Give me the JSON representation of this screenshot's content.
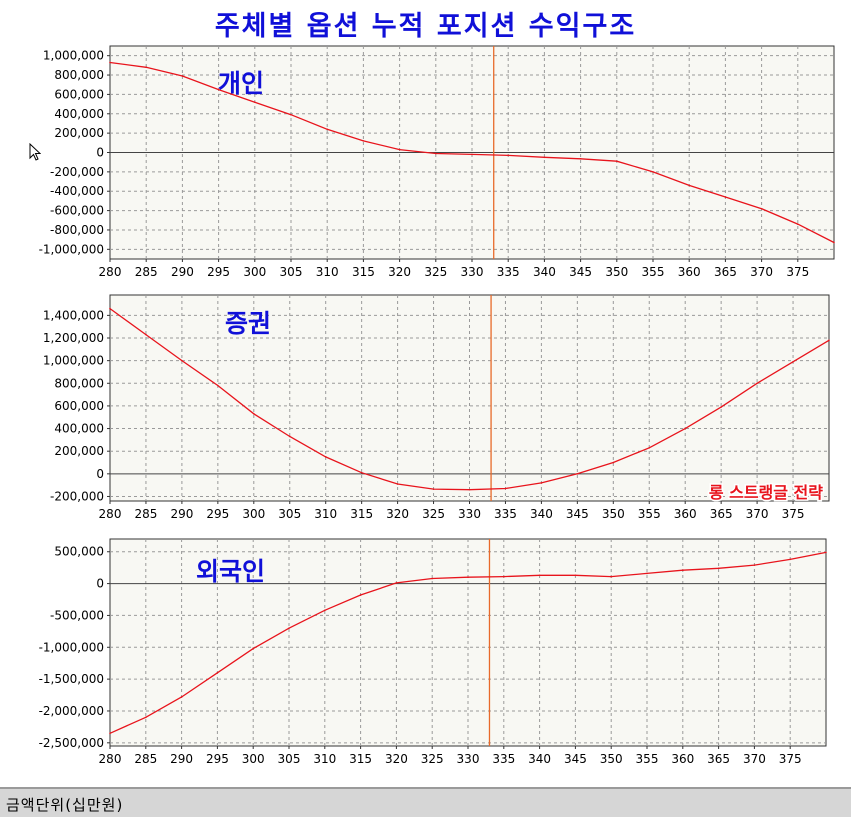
{
  "title": "주체별 옵션 누적 포지션 수익구조",
  "footer_label": "금액단위(십만원)",
  "colors": {
    "title": "#1010d8",
    "line": "#e8141c",
    "cursor_line": "#e86a2a",
    "plot_bg": "#f8f8f3",
    "panel_label": "#1010d8",
    "annotation": "#e8141c"
  },
  "chart_data": [
    {
      "type": "line",
      "panel_label": "개인",
      "xlim": [
        280,
        380
      ],
      "ylim": [
        -1100000,
        1100000
      ],
      "x_ticks": [
        "280",
        "285",
        "290",
        "295",
        "300",
        "305",
        "310",
        "315",
        "320",
        "325",
        "330",
        "335",
        "340",
        "345",
        "350",
        "355",
        "360",
        "365",
        "370",
        "375"
      ],
      "y_ticks": [
        {
          "v": 1000000,
          "label": "1,000,000"
        },
        {
          "v": 800000,
          "label": "800,000"
        },
        {
          "v": 600000,
          "label": "600,000"
        },
        {
          "v": 400000,
          "label": "400,000"
        },
        {
          "v": 200000,
          "label": "200,000"
        },
        {
          "v": 0,
          "label": "0"
        },
        {
          "v": -200000,
          "label": "-200,000"
        },
        {
          "v": -400000,
          "label": "-400,000"
        },
        {
          "v": -600000,
          "label": "-600,000"
        },
        {
          "v": -800000,
          "label": "-800,000"
        },
        {
          "v": -1000000,
          "label": "-1,000,000"
        }
      ],
      "x": [
        280,
        285,
        290,
        295,
        300,
        305,
        310,
        315,
        320,
        325,
        330,
        335,
        340,
        345,
        350,
        355,
        360,
        365,
        370,
        375,
        380
      ],
      "y": [
        930000,
        880000,
        790000,
        650000,
        520000,
        390000,
        240000,
        120000,
        30000,
        -10000,
        -20000,
        -30000,
        -50000,
        -65000,
        -90000,
        -200000,
        -340000,
        -460000,
        -580000,
        -740000,
        -930000
      ],
      "cursor_x": 333,
      "grid": true,
      "annotation": ""
    },
    {
      "type": "line",
      "panel_label": "증권",
      "xlim": [
        280,
        380
      ],
      "ylim": [
        -240000,
        1580000
      ],
      "x_ticks": [
        "280",
        "285",
        "290",
        "295",
        "300",
        "305",
        "310",
        "315",
        "320",
        "325",
        "330",
        "335",
        "340",
        "345",
        "350",
        "355",
        "360",
        "365",
        "370",
        "375"
      ],
      "y_ticks": [
        {
          "v": 1400000,
          "label": "1,400,000"
        },
        {
          "v": 1200000,
          "label": "1,200,000"
        },
        {
          "v": 1000000,
          "label": "1,000,000"
        },
        {
          "v": 800000,
          "label": "800,000"
        },
        {
          "v": 600000,
          "label": "600,000"
        },
        {
          "v": 400000,
          "label": "400,000"
        },
        {
          "v": 200000,
          "label": "200,000"
        },
        {
          "v": 0,
          "label": "0"
        },
        {
          "v": -200000,
          "label": "-200,000"
        }
      ],
      "x": [
        280,
        285,
        290,
        295,
        300,
        305,
        310,
        315,
        320,
        325,
        330,
        335,
        340,
        345,
        350,
        355,
        360,
        365,
        370,
        375,
        380
      ],
      "y": [
        1460000,
        1230000,
        1000000,
        780000,
        530000,
        330000,
        150000,
        10000,
        -90000,
        -135000,
        -140000,
        -130000,
        -80000,
        0,
        100000,
        230000,
        400000,
        590000,
        800000,
        990000,
        1180000
      ],
      "cursor_x": 333,
      "grid": true,
      "annotation": "롱 스트랭글 전략"
    },
    {
      "type": "line",
      "panel_label": "외국인",
      "xlim": [
        280,
        380
      ],
      "ylim": [
        -2550000,
        700000
      ],
      "x_ticks": [
        "280",
        "285",
        "290",
        "295",
        "300",
        "305",
        "310",
        "315",
        "320",
        "325",
        "330",
        "335",
        "340",
        "345",
        "350",
        "355",
        "360",
        "365",
        "370",
        "375"
      ],
      "y_ticks": [
        {
          "v": 500000,
          "label": "500,000"
        },
        {
          "v": 0,
          "label": "0"
        },
        {
          "v": -500000,
          "label": "-500,000"
        },
        {
          "v": -1000000,
          "label": "-1,000,000"
        },
        {
          "v": -1500000,
          "label": "-1,500,000"
        },
        {
          "v": -2000000,
          "label": "-2,000,000"
        },
        {
          "v": -2500000,
          "label": "-2,500,000"
        }
      ],
      "x": [
        280,
        285,
        290,
        295,
        300,
        305,
        310,
        315,
        320,
        325,
        330,
        335,
        340,
        345,
        350,
        355,
        360,
        365,
        370,
        375,
        380
      ],
      "y": [
        -2350000,
        -2100000,
        -1780000,
        -1400000,
        -1020000,
        -700000,
        -420000,
        -180000,
        10000,
        80000,
        100000,
        110000,
        130000,
        130000,
        110000,
        160000,
        210000,
        240000,
        290000,
        380000,
        490000
      ],
      "cursor_x": 333,
      "grid": true,
      "annotation": ""
    }
  ]
}
